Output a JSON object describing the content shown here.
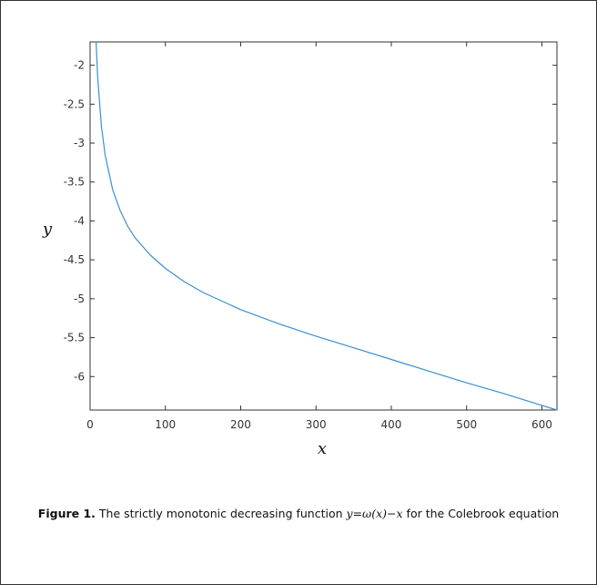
{
  "chart_data": {
    "type": "line",
    "xlabel": "x",
    "ylabel": "y",
    "xlim": [
      0,
      620
    ],
    "ylim": [
      -6.43,
      -1.7
    ],
    "xticks": [
      0,
      100,
      200,
      300,
      400,
      500,
      600
    ],
    "xtick_labels": [
      "0",
      "100",
      "200",
      "300",
      "400",
      "500",
      "600"
    ],
    "yticks": [
      -2,
      -2.5,
      -3,
      -3.5,
      -4,
      -4.5,
      -5,
      -5.5,
      -6
    ],
    "ytick_labels": [
      "-2",
      "-2.5",
      "-3",
      "-3.5",
      "-4",
      "-4.5",
      "-5",
      "-5.5",
      "-6"
    ],
    "grid": false,
    "series": [
      {
        "color": "#3a8fd0",
        "x": [
          8,
          10,
          15,
          20,
          30,
          40,
          50,
          60,
          80,
          100,
          125,
          150,
          200,
          250,
          300,
          350,
          400,
          450,
          500,
          550,
          600,
          620
        ],
        "y": [
          -1.7,
          -2.15,
          -2.78,
          -3.15,
          -3.6,
          -3.87,
          -4.07,
          -4.22,
          -4.44,
          -4.61,
          -4.78,
          -4.92,
          -5.14,
          -5.32,
          -5.48,
          -5.63,
          -5.78,
          -5.93,
          -6.08,
          -6.22,
          -6.37,
          -6.43
        ]
      }
    ]
  },
  "caption": {
    "label": "Figure 1.",
    "text_before": " The strictly monotonic decreasing function ",
    "math": "y=ω(x)−x",
    "text_after": " for the Colebrook equation"
  }
}
